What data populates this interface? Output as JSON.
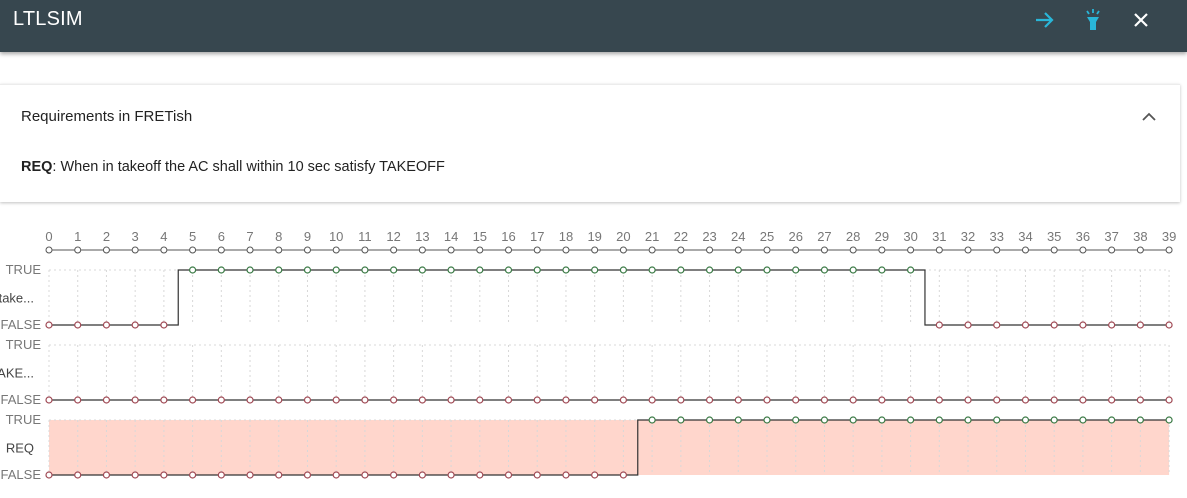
{
  "app": {
    "title": "LTLSIM",
    "icons": {
      "forward": "arrow-right-icon",
      "highlight": "flashlight-icon",
      "close": "close-icon"
    },
    "colors": {
      "appbar": "#37474f",
      "accent": "#29b6d8",
      "req_fill": "#ffd6cc",
      "true_dot": "#3a7a45",
      "false_dot": "#a04a55"
    }
  },
  "requirements": {
    "header": "Requirements in FRETish",
    "items": [
      {
        "id": "REQ",
        "text": ": When in takeoff the AC shall within 10 sec satisfy TAKEOFF"
      }
    ]
  },
  "timeline": {
    "ticks": [
      "0",
      "1",
      "2",
      "3",
      "4",
      "5",
      "6",
      "7",
      "8",
      "9",
      "10",
      "11",
      "12",
      "13",
      "14",
      "15",
      "16",
      "17",
      "18",
      "19",
      "20",
      "21",
      "22",
      "23",
      "24",
      "25",
      "26",
      "27",
      "28",
      "29",
      "30",
      "31",
      "32",
      "33",
      "34",
      "35",
      "36",
      "37",
      "38",
      "39"
    ],
    "true_label": "TRUE",
    "false_label": "FALSE",
    "traces": [
      {
        "name": "take...",
        "values": [
          0,
          0,
          0,
          0,
          0,
          1,
          1,
          1,
          1,
          1,
          1,
          1,
          1,
          1,
          1,
          1,
          1,
          1,
          1,
          1,
          1,
          1,
          1,
          1,
          1,
          1,
          1,
          1,
          1,
          1,
          1,
          0,
          0,
          0,
          0,
          0,
          0,
          0,
          0,
          0
        ],
        "highlight": false
      },
      {
        "name": "TAKE...",
        "values": [
          0,
          0,
          0,
          0,
          0,
          0,
          0,
          0,
          0,
          0,
          0,
          0,
          0,
          0,
          0,
          0,
          0,
          0,
          0,
          0,
          0,
          0,
          0,
          0,
          0,
          0,
          0,
          0,
          0,
          0,
          0,
          0,
          0,
          0,
          0,
          0,
          0,
          0,
          0,
          0
        ],
        "highlight": false
      },
      {
        "name": "REQ",
        "values": [
          0,
          0,
          0,
          0,
          0,
          0,
          0,
          0,
          0,
          0,
          0,
          0,
          0,
          0,
          0,
          0,
          0,
          0,
          0,
          0,
          0,
          1,
          1,
          1,
          1,
          1,
          1,
          1,
          1,
          1,
          1,
          1,
          1,
          1,
          1,
          1,
          1,
          1,
          1,
          1
        ],
        "highlight": true
      }
    ]
  }
}
